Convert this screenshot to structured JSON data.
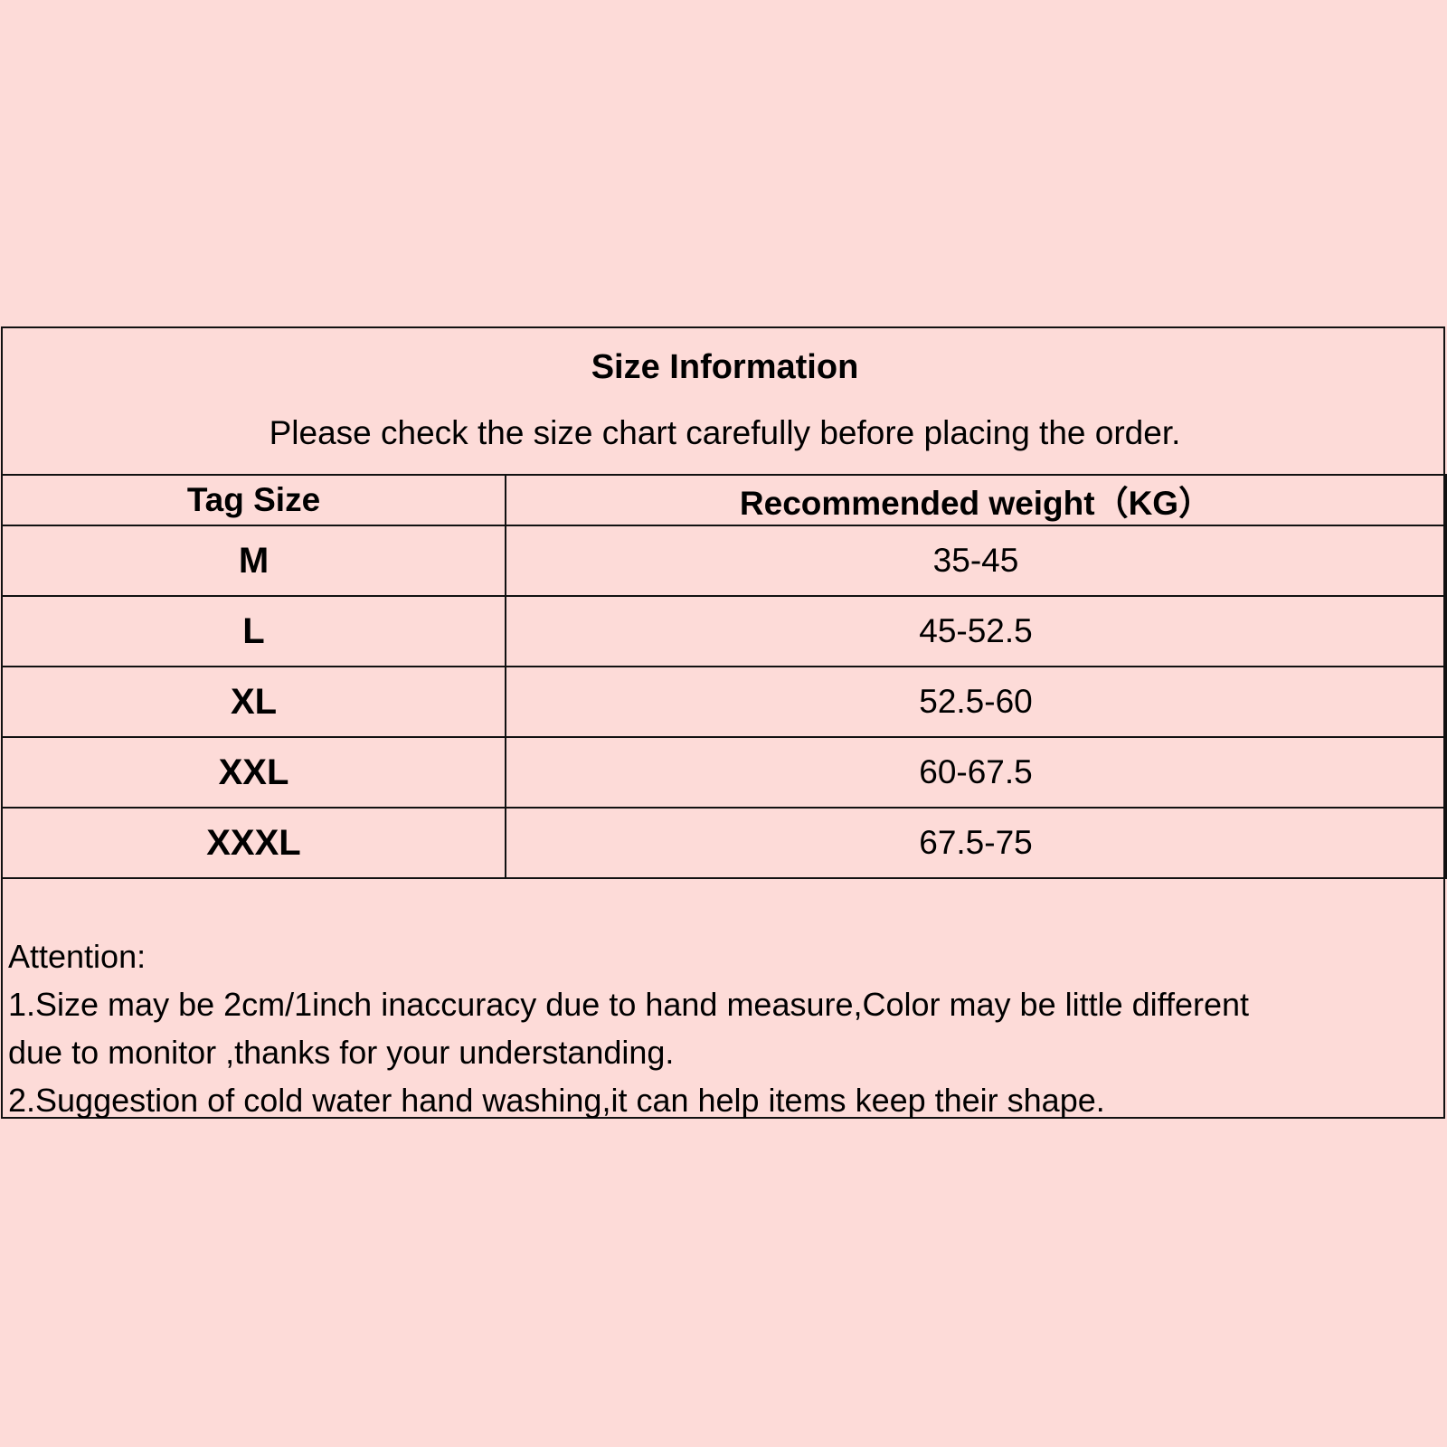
{
  "title": "Size Information",
  "subtitle": "Please check the size chart carefully before placing the order.",
  "table": {
    "headers": [
      "Tag Size",
      "Recommended weight（KG）"
    ],
    "rows": [
      {
        "size": "M",
        "weight": "35-45"
      },
      {
        "size": "L",
        "weight": "45-52.5"
      },
      {
        "size": "XL",
        "weight": "52.5-60"
      },
      {
        "size": "XXL",
        "weight": "60-67.5"
      },
      {
        "size": "XXXL",
        "weight": "67.5-75"
      }
    ]
  },
  "notes": {
    "heading": "Attention:",
    "lines": [
      "1.Size may be 2cm/1inch inaccuracy due to hand measure,Color may be little different",
      "due to monitor ,thanks for your understanding.",
      "2.Suggestion of cold water hand washing,it can help items keep their shape."
    ]
  },
  "colors": {
    "background": "#fddbd8",
    "border": "#111111"
  }
}
